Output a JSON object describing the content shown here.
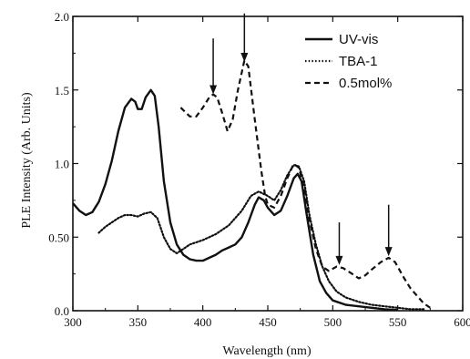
{
  "chart_data": {
    "type": "line",
    "xlabel": "Wavelength (nm)",
    "ylabel": "PLE Intensity (Arb. Units)",
    "xlim": [
      300,
      600
    ],
    "ylim": [
      0,
      2.0
    ],
    "x_ticks": [
      "300",
      "350",
      "400",
      "450",
      "500",
      "550",
      "600"
    ],
    "y_ticks": [
      "0.0",
      "0.50",
      "1.0",
      "1.5",
      "2.0"
    ],
    "legend_position": "top-right",
    "series": [
      {
        "name": "UV-vis",
        "style": "solid",
        "points": [
          [
            300,
            0.73
          ],
          [
            305,
            0.68
          ],
          [
            310,
            0.65
          ],
          [
            315,
            0.67
          ],
          [
            320,
            0.74
          ],
          [
            325,
            0.86
          ],
          [
            330,
            1.02
          ],
          [
            335,
            1.22
          ],
          [
            340,
            1.38
          ],
          [
            345,
            1.44
          ],
          [
            348,
            1.42
          ],
          [
            350,
            1.37
          ],
          [
            353,
            1.37
          ],
          [
            356,
            1.45
          ],
          [
            360,
            1.5
          ],
          [
            363,
            1.46
          ],
          [
            366,
            1.25
          ],
          [
            370,
            0.88
          ],
          [
            375,
            0.6
          ],
          [
            380,
            0.45
          ],
          [
            385,
            0.38
          ],
          [
            390,
            0.35
          ],
          [
            395,
            0.34
          ],
          [
            400,
            0.34
          ],
          [
            405,
            0.36
          ],
          [
            410,
            0.38
          ],
          [
            415,
            0.41
          ],
          [
            420,
            0.43
          ],
          [
            425,
            0.45
          ],
          [
            430,
            0.5
          ],
          [
            435,
            0.6
          ],
          [
            440,
            0.72
          ],
          [
            443,
            0.77
          ],
          [
            447,
            0.75
          ],
          [
            450,
            0.7
          ],
          [
            455,
            0.65
          ],
          [
            460,
            0.68
          ],
          [
            465,
            0.78
          ],
          [
            470,
            0.9
          ],
          [
            473,
            0.93
          ],
          [
            476,
            0.88
          ],
          [
            480,
            0.65
          ],
          [
            485,
            0.38
          ],
          [
            490,
            0.2
          ],
          [
            495,
            0.12
          ],
          [
            500,
            0.07
          ],
          [
            510,
            0.04
          ],
          [
            520,
            0.03
          ],
          [
            530,
            0.02
          ],
          [
            540,
            0.01
          ],
          [
            550,
            0.005
          ]
        ]
      },
      {
        "name": "TBA-1",
        "style": "dotted",
        "points": [
          [
            320,
            0.53
          ],
          [
            325,
            0.57
          ],
          [
            330,
            0.6
          ],
          [
            335,
            0.63
          ],
          [
            340,
            0.65
          ],
          [
            345,
            0.65
          ],
          [
            350,
            0.64
          ],
          [
            355,
            0.66
          ],
          [
            360,
            0.67
          ],
          [
            365,
            0.63
          ],
          [
            370,
            0.5
          ],
          [
            375,
            0.42
          ],
          [
            380,
            0.39
          ],
          [
            385,
            0.42
          ],
          [
            390,
            0.45
          ],
          [
            400,
            0.48
          ],
          [
            410,
            0.52
          ],
          [
            420,
            0.58
          ],
          [
            430,
            0.68
          ],
          [
            437,
            0.78
          ],
          [
            443,
            0.81
          ],
          [
            450,
            0.78
          ],
          [
            455,
            0.75
          ],
          [
            460,
            0.82
          ],
          [
            465,
            0.92
          ],
          [
            470,
            0.99
          ],
          [
            474,
            0.98
          ],
          [
            478,
            0.88
          ],
          [
            482,
            0.65
          ],
          [
            487,
            0.45
          ],
          [
            492,
            0.3
          ],
          [
            497,
            0.2
          ],
          [
            503,
            0.13
          ],
          [
            510,
            0.09
          ],
          [
            520,
            0.06
          ],
          [
            530,
            0.04
          ],
          [
            540,
            0.03
          ],
          [
            550,
            0.02
          ],
          [
            560,
            0.01
          ],
          [
            570,
            0.01
          ]
        ]
      },
      {
        "name": "0.5mol%",
        "style": "dashed",
        "segments": [
          [
            [
              383,
              1.38
            ],
            [
              390,
              1.32
            ],
            [
              395,
              1.32
            ],
            [
              400,
              1.38
            ],
            [
              405,
              1.45
            ],
            [
              408,
              1.47
            ],
            [
              411,
              1.45
            ],
            [
              415,
              1.34
            ],
            [
              419,
              1.22
            ],
            [
              423,
              1.3
            ],
            [
              427,
              1.5
            ],
            [
              432,
              1.7
            ],
            [
              435,
              1.66
            ],
            [
              440,
              1.3
            ],
            [
              445,
              0.95
            ],
            [
              448,
              0.78
            ],
            [
              450,
              0.72
            ],
            [
              455,
              0.7
            ],
            [
              460,
              0.78
            ],
            [
              465,
              0.9
            ],
            [
              470,
              1.0
            ],
            [
              474,
              0.97
            ],
            [
              478,
              0.83
            ],
            [
              482,
              0.62
            ],
            [
              487,
              0.42
            ],
            [
              492,
              0.3
            ],
            [
              497,
              0.27
            ],
            [
              503,
              0.3
            ],
            [
              508,
              0.29
            ],
            [
              515,
              0.25
            ],
            [
              520,
              0.22
            ],
            [
              525,
              0.24
            ],
            [
              530,
              0.28
            ],
            [
              537,
              0.33
            ],
            [
              543,
              0.36
            ],
            [
              548,
              0.33
            ],
            [
              555,
              0.22
            ],
            [
              560,
              0.15
            ],
            [
              565,
              0.1
            ],
            [
              570,
              0.05
            ],
            [
              575,
              0.02
            ]
          ]
        ]
      }
    ],
    "annotations": [
      {
        "type": "arrow",
        "x": 408,
        "y_from": 1.85,
        "y_to": 1.52
      },
      {
        "type": "arrow",
        "x": 432,
        "y_from": 2.02,
        "y_to": 1.74
      },
      {
        "type": "arrow",
        "x": 505,
        "y_from": 0.6,
        "y_to": 0.36
      },
      {
        "type": "arrow",
        "x": 543,
        "y_from": 0.72,
        "y_to": 0.42
      }
    ]
  }
}
